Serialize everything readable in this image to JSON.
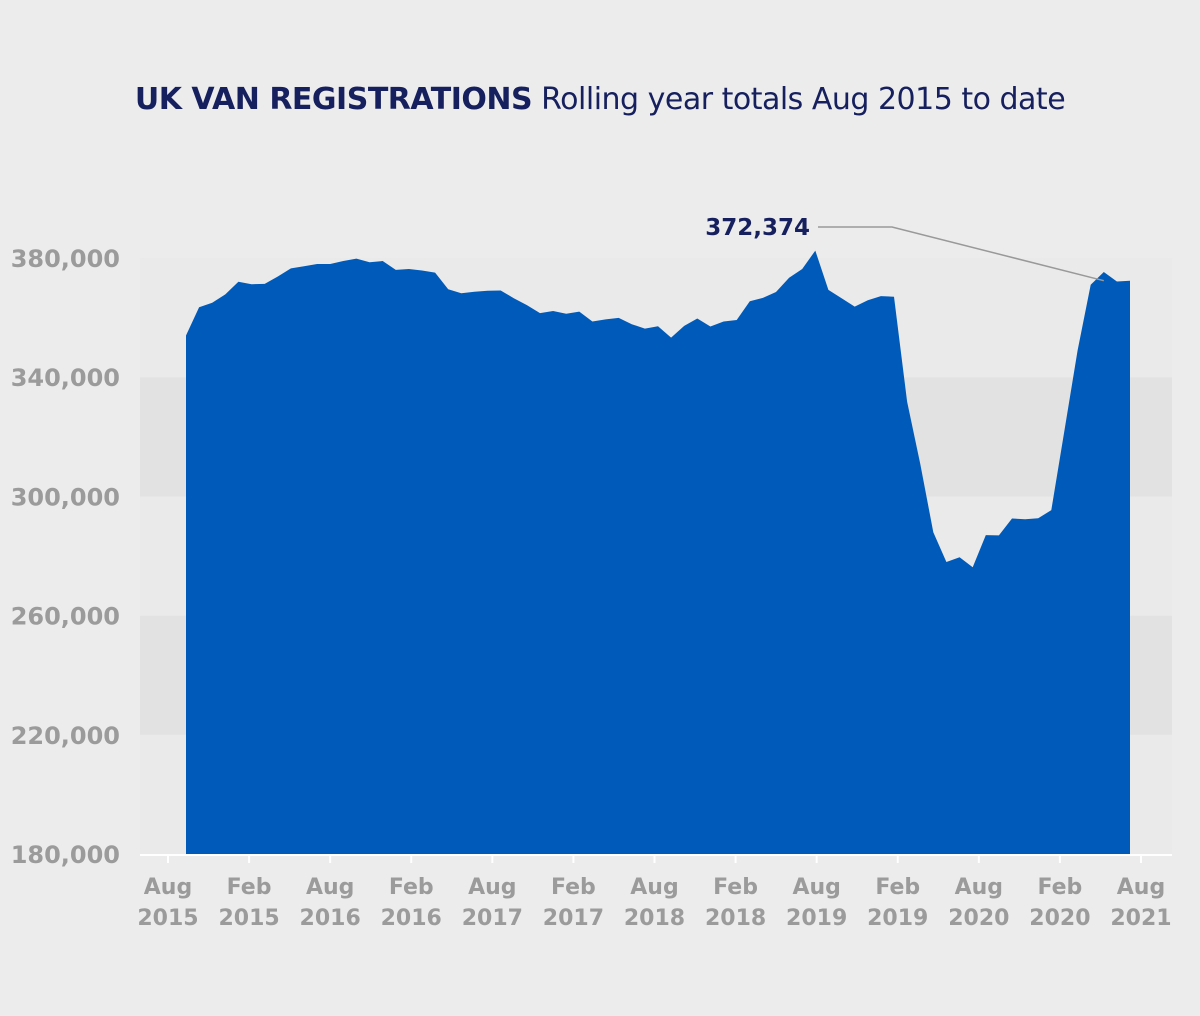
{
  "title": {
    "main": "UK VAN REGISTRATIONS",
    "sub": "Rolling year totals Aug 2015 to date"
  },
  "colors": {
    "area": "#005ab9",
    "band_dark": "#e2e2e2",
    "band_light": "#eaeaea",
    "background": "#ececec",
    "title": "#16205e",
    "tick": "#9b9b9b"
  },
  "chart_data": {
    "type": "area",
    "title": "UK VAN REGISTRATIONS",
    "subtitle": "Rolling year totals Aug 2015 to date",
    "xlabel": "",
    "ylabel": "",
    "ylim": [
      180000,
      380000
    ],
    "yticks": [
      "180,000",
      "220,000",
      "260,000",
      "300,000",
      "340,000",
      "380,000"
    ],
    "ytick_values": [
      180000,
      220000,
      260000,
      300000,
      340000,
      380000
    ],
    "xticks": [
      [
        "Aug",
        "2015"
      ],
      [
        "Feb",
        "2015"
      ],
      [
        "Aug",
        "2016"
      ],
      [
        "Feb",
        "2016"
      ],
      [
        "Aug",
        "2017"
      ],
      [
        "Feb",
        "2017"
      ],
      [
        "Aug",
        "2018"
      ],
      [
        "Feb",
        "2018"
      ],
      [
        "Aug",
        "2019"
      ],
      [
        "Feb",
        "2019"
      ],
      [
        "Aug",
        "2020"
      ],
      [
        "Feb",
        "2020"
      ],
      [
        "Aug",
        "2021"
      ]
    ],
    "grid": "alternating horizontal bands",
    "annotation": {
      "label": "372,374",
      "value": 372374,
      "index": 70
    },
    "series": [
      {
        "values": [
          354000,
          363500,
          365000,
          367800,
          372000,
          371200,
          371300,
          373800,
          376500,
          377200,
          378000,
          378000,
          379000,
          379800,
          378600,
          379000,
          376000,
          376300,
          375800,
          375100,
          369500,
          368200,
          368700,
          369000,
          369100,
          366500,
          364200,
          361500,
          362200,
          361300,
          362000,
          358700,
          359400,
          359900,
          357800,
          356300,
          357100,
          353300,
          357200,
          359700,
          357000,
          358700,
          359200,
          365500,
          366600,
          368600,
          373400,
          376300,
          382500,
          369300,
          366500,
          363700,
          365800,
          367200,
          367000,
          331800,
          311000,
          288000,
          278000,
          279600,
          276200,
          287000,
          286900,
          292600,
          292300,
          292700,
          295400,
          322000,
          349000,
          371000,
          375300,
          372100,
          372374
        ]
      }
    ]
  }
}
